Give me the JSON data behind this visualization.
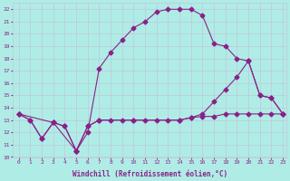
{
  "xlabel": "Windchill (Refroidissement éolien,°C)",
  "background_color": "#b0ece6",
  "grid_color": "#c0c8d8",
  "line_color": "#882288",
  "xlim": [
    -0.5,
    23.3
  ],
  "ylim": [
    10.0,
    22.5
  ],
  "yticks": [
    10,
    11,
    12,
    13,
    14,
    15,
    16,
    17,
    18,
    19,
    20,
    21,
    22
  ],
  "xticks": [
    0,
    1,
    2,
    3,
    4,
    5,
    6,
    7,
    8,
    9,
    10,
    11,
    12,
    13,
    14,
    15,
    16,
    17,
    18,
    19,
    20,
    21,
    22,
    23
  ],
  "line_big_x": [
    0,
    1,
    2,
    3,
    4,
    5,
    6,
    7,
    8,
    9,
    10,
    11,
    12,
    13,
    14,
    15,
    16,
    17,
    18,
    19,
    20,
    21,
    22,
    23
  ],
  "line_big_y": [
    13.5,
    13.0,
    11.5,
    12.8,
    12.5,
    10.5,
    12.0,
    17.2,
    18.5,
    19.5,
    20.5,
    21.0,
    21.8,
    22.0,
    22.0,
    22.0,
    21.5,
    19.2,
    19.0,
    18.0,
    17.8,
    15.0,
    14.8,
    13.5
  ],
  "line_flat_x": [
    0,
    1,
    2,
    3,
    4,
    5,
    6,
    7,
    8,
    9,
    10,
    11,
    12,
    13,
    14,
    15,
    16,
    17,
    18,
    19,
    20,
    21,
    22,
    23
  ],
  "line_flat_y": [
    13.5,
    13.0,
    11.5,
    12.8,
    12.5,
    10.5,
    12.5,
    13.0,
    13.0,
    13.0,
    13.0,
    13.0,
    13.0,
    13.0,
    13.0,
    13.2,
    13.3,
    13.3,
    13.5,
    13.5,
    13.5,
    13.5,
    13.5,
    13.5
  ],
  "line_diag_x": [
    0,
    3,
    5,
    6,
    7,
    10,
    14,
    15,
    16,
    17,
    18,
    19,
    20,
    21,
    22,
    23
  ],
  "line_diag_y": [
    13.5,
    12.8,
    10.5,
    12.5,
    13.0,
    13.0,
    13.0,
    13.2,
    13.5,
    14.5,
    15.5,
    16.5,
    17.8,
    15.0,
    14.8,
    13.5
  ]
}
